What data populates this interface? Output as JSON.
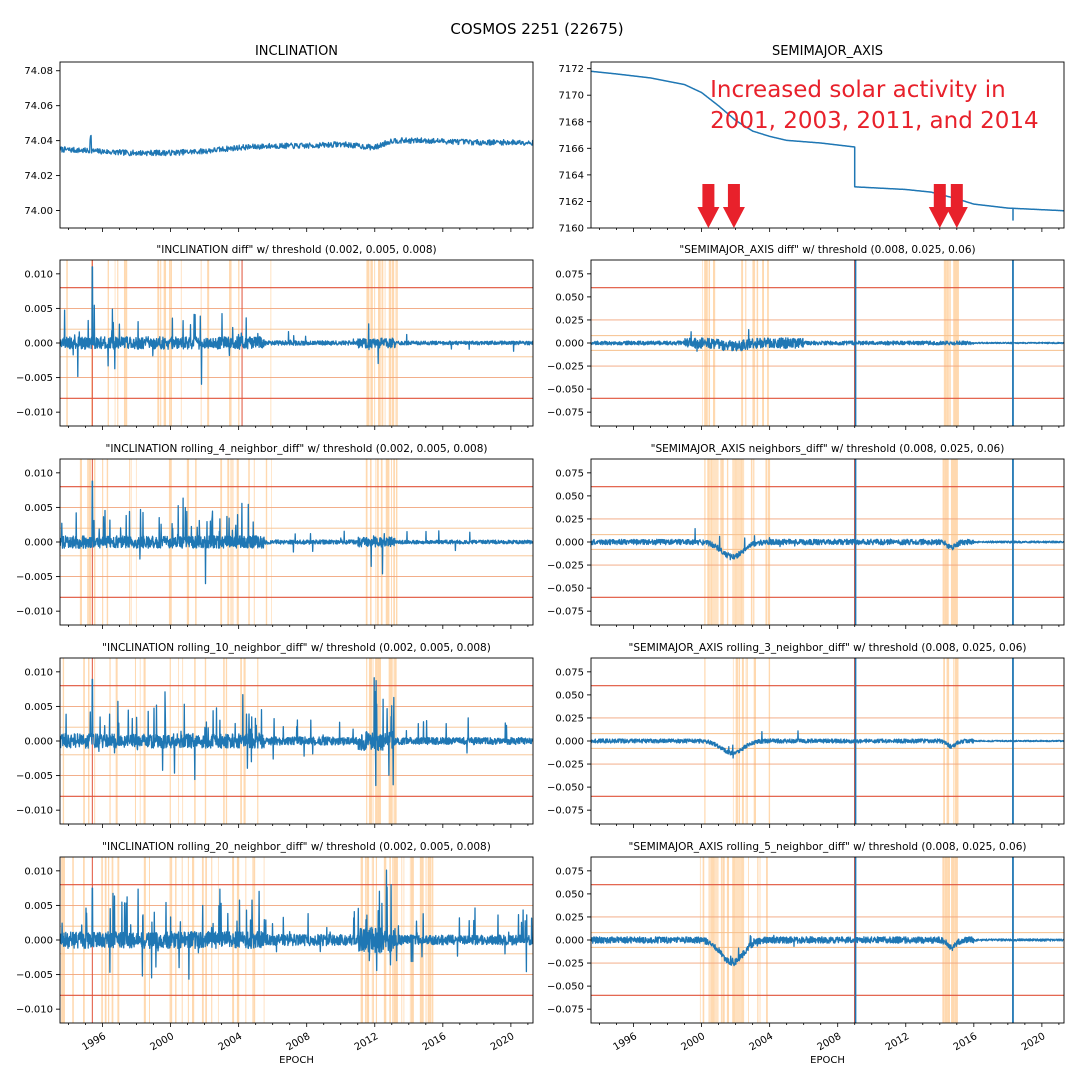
{
  "suptitle": "COSMOS 2251 (22675)",
  "colors": {
    "line": "#1f77b4",
    "threshold_low": "#f6c08d",
    "threshold_mid": "#f0a37a",
    "threshold_high": "#e0523a",
    "flag_band": "#ffd9b0",
    "arrow": "#e8212b"
  },
  "annotation": {
    "line1": "Increased solar activity in",
    "line2": "2001, 2003, 2011, and 2014"
  },
  "chart_data": [
    {
      "id": "inc",
      "type": "line",
      "title": "INCLINATION",
      "xlabel": "",
      "xlim": [
        1993.5,
        2021.3
      ],
      "ylim": [
        73.99,
        74.085
      ],
      "yticks": [
        74.0,
        74.02,
        74.04,
        74.06,
        74.08
      ],
      "ytick_labels": [
        "74.00",
        "74.02",
        "74.04",
        "74.06",
        "74.08"
      ],
      "series": [
        {
          "x": [
            1993.5,
            1995.5,
            1997.5,
            2000.0,
            2002.0,
            2004.0,
            2006.0,
            2008.0,
            2010.0,
            2012.0,
            2013.0,
            2015.0,
            2018.0,
            2021.3
          ],
          "y": [
            74.035,
            74.034,
            74.033,
            74.033,
            74.034,
            74.036,
            74.037,
            74.037,
            74.038,
            74.036,
            74.04,
            74.04,
            74.039,
            74.039
          ]
        }
      ]
    },
    {
      "id": "sma",
      "type": "line",
      "title": "SEMIMAJOR_AXIS",
      "xlabel": "",
      "xlim": [
        1993.5,
        2021.3
      ],
      "ylim": [
        7160,
        7172.5
      ],
      "yticks": [
        7160,
        7162,
        7164,
        7166,
        7168,
        7170,
        7172
      ],
      "ytick_labels": [
        "7160",
        "7162",
        "7164",
        "7166",
        "7168",
        "7170",
        "7172"
      ],
      "series": [
        {
          "x": [
            1993.5,
            1995.0,
            1997.0,
            1999.0,
            2000.0,
            2001.0,
            2002.0,
            2003.0,
            2004.0,
            2005.0,
            2007.0,
            2009.0,
            2009.0,
            2012.0,
            2013.5,
            2015.0,
            2016.0,
            2018.0,
            2021.3
          ],
          "y": [
            7171.8,
            7171.6,
            7171.3,
            7170.8,
            7170.2,
            7169.2,
            7168.1,
            7167.3,
            7166.9,
            7166.6,
            7166.4,
            7166.1,
            7163.1,
            7162.9,
            7162.7,
            7162.2,
            7161.8,
            7161.5,
            7161.3
          ]
        }
      ],
      "annotations": {
        "arrows_x": [
          2000.4,
          2001.9,
          2014.0,
          2015.0
        ],
        "text_at": [
          2000.5,
          7170.0
        ]
      }
    },
    {
      "id": "inc_diff",
      "type": "line",
      "title": "\"INCLINATION diff\" w/ threshold (0.002, 0.005, 0.008)",
      "xlim": [
        1993.5,
        2021.3
      ],
      "ylim": [
        -0.012,
        0.012
      ],
      "yticks": [
        -0.01,
        -0.005,
        0.0,
        0.005,
        0.01
      ],
      "ytick_labels": [
        "−0.010",
        "−0.005",
        "0.000",
        "0.005",
        "0.010"
      ],
      "thresholds": [
        0.002,
        0.005,
        0.008
      ]
    },
    {
      "id": "sma_diff",
      "type": "line",
      "title": "\"SEMIMAJOR_AXIS diff\" w/ threshold (0.008, 0.025, 0.06)",
      "xlim": [
        1993.5,
        2021.3
      ],
      "ylim": [
        -0.09,
        0.09
      ],
      "yticks": [
        -0.075,
        -0.05,
        -0.025,
        0.0,
        0.025,
        0.05,
        0.075
      ],
      "ytick_labels": [
        "−0.075",
        "−0.050",
        "−0.025",
        "0.000",
        "0.025",
        "0.050",
        "0.075"
      ],
      "thresholds": [
        0.008,
        0.025,
        0.06
      ]
    },
    {
      "id": "inc_r4",
      "type": "line",
      "title": "\"INCLINATION rolling_4_neighbor_diff\" w/ threshold (0.002, 0.005, 0.008)",
      "xlim": [
        1993.5,
        2021.3
      ],
      "ylim": [
        -0.012,
        0.012
      ],
      "yticks": [
        -0.01,
        -0.005,
        0.0,
        0.005,
        0.01
      ],
      "ytick_labels": [
        "−0.010",
        "−0.005",
        "0.000",
        "0.005",
        "0.010"
      ],
      "thresholds": [
        0.002,
        0.005,
        0.008
      ]
    },
    {
      "id": "sma_nb",
      "type": "line",
      "title": "\"SEMIMAJOR_AXIS neighbors_diff\" w/ threshold (0.008, 0.025, 0.06)",
      "xlim": [
        1993.5,
        2021.3
      ],
      "ylim": [
        -0.09,
        0.09
      ],
      "yticks": [
        -0.075,
        -0.05,
        -0.025,
        0.0,
        0.025,
        0.05,
        0.075
      ],
      "ytick_labels": [
        "−0.075",
        "−0.050",
        "−0.025",
        "0.000",
        "0.025",
        "0.050",
        "0.075"
      ],
      "thresholds": [
        0.008,
        0.025,
        0.06
      ]
    },
    {
      "id": "inc_r10",
      "type": "line",
      "title": "\"INCLINATION rolling_10_neighbor_diff\" w/ threshold (0.002, 0.005, 0.008)",
      "xlim": [
        1993.5,
        2021.3
      ],
      "ylim": [
        -0.012,
        0.012
      ],
      "yticks": [
        -0.01,
        -0.005,
        0.0,
        0.005,
        0.01
      ],
      "ytick_labels": [
        "−0.010",
        "−0.005",
        "0.000",
        "0.005",
        "0.010"
      ],
      "thresholds": [
        0.002,
        0.005,
        0.008
      ]
    },
    {
      "id": "sma_r3",
      "type": "line",
      "title": "\"SEMIMAJOR_AXIS rolling_3_neighbor_diff\" w/ threshold (0.008, 0.025, 0.06)",
      "xlim": [
        1993.5,
        2021.3
      ],
      "ylim": [
        -0.09,
        0.09
      ],
      "yticks": [
        -0.075,
        -0.05,
        -0.025,
        0.0,
        0.025,
        0.05,
        0.075
      ],
      "ytick_labels": [
        "−0.075",
        "−0.050",
        "−0.025",
        "0.000",
        "0.025",
        "0.050",
        "0.075"
      ],
      "thresholds": [
        0.008,
        0.025,
        0.06
      ]
    },
    {
      "id": "inc_r20",
      "type": "line",
      "title": "\"INCLINATION rolling_20_neighbor_diff\" w/ threshold (0.002, 0.005, 0.008)",
      "xlabel": "EPOCH",
      "xlim": [
        1993.5,
        2021.3
      ],
      "ylim": [
        -0.012,
        0.012
      ],
      "yticks": [
        -0.01,
        -0.005,
        0.0,
        0.005,
        0.01
      ],
      "ytick_labels": [
        "−0.010",
        "−0.005",
        "0.000",
        "0.005",
        "0.010"
      ],
      "xticks": [
        1996,
        2000,
        2004,
        2008,
        2012,
        2016,
        2020
      ],
      "xtick_labels": [
        "1996",
        "2000",
        "2004",
        "2008",
        "2012",
        "2016",
        "2020"
      ],
      "thresholds": [
        0.002,
        0.005,
        0.008
      ]
    },
    {
      "id": "sma_r5",
      "type": "line",
      "title": "\"SEMIMAJOR_AXIS rolling_5_neighbor_diff\" w/ threshold (0.008, 0.025, 0.06)",
      "xlabel": "EPOCH",
      "xlim": [
        1993.5,
        2021.3
      ],
      "ylim": [
        -0.09,
        0.09
      ],
      "yticks": [
        -0.075,
        -0.05,
        -0.025,
        0.0,
        0.025,
        0.05,
        0.075
      ],
      "ytick_labels": [
        "−0.075",
        "−0.050",
        "−0.025",
        "0.000",
        "0.025",
        "0.050",
        "0.075"
      ],
      "xticks": [
        1996,
        2000,
        2004,
        2008,
        2012,
        2016,
        2020
      ],
      "xtick_labels": [
        "1996",
        "2000",
        "2004",
        "2008",
        "2012",
        "2016",
        "2020"
      ],
      "thresholds": [
        0.008,
        0.025,
        0.06
      ]
    }
  ]
}
